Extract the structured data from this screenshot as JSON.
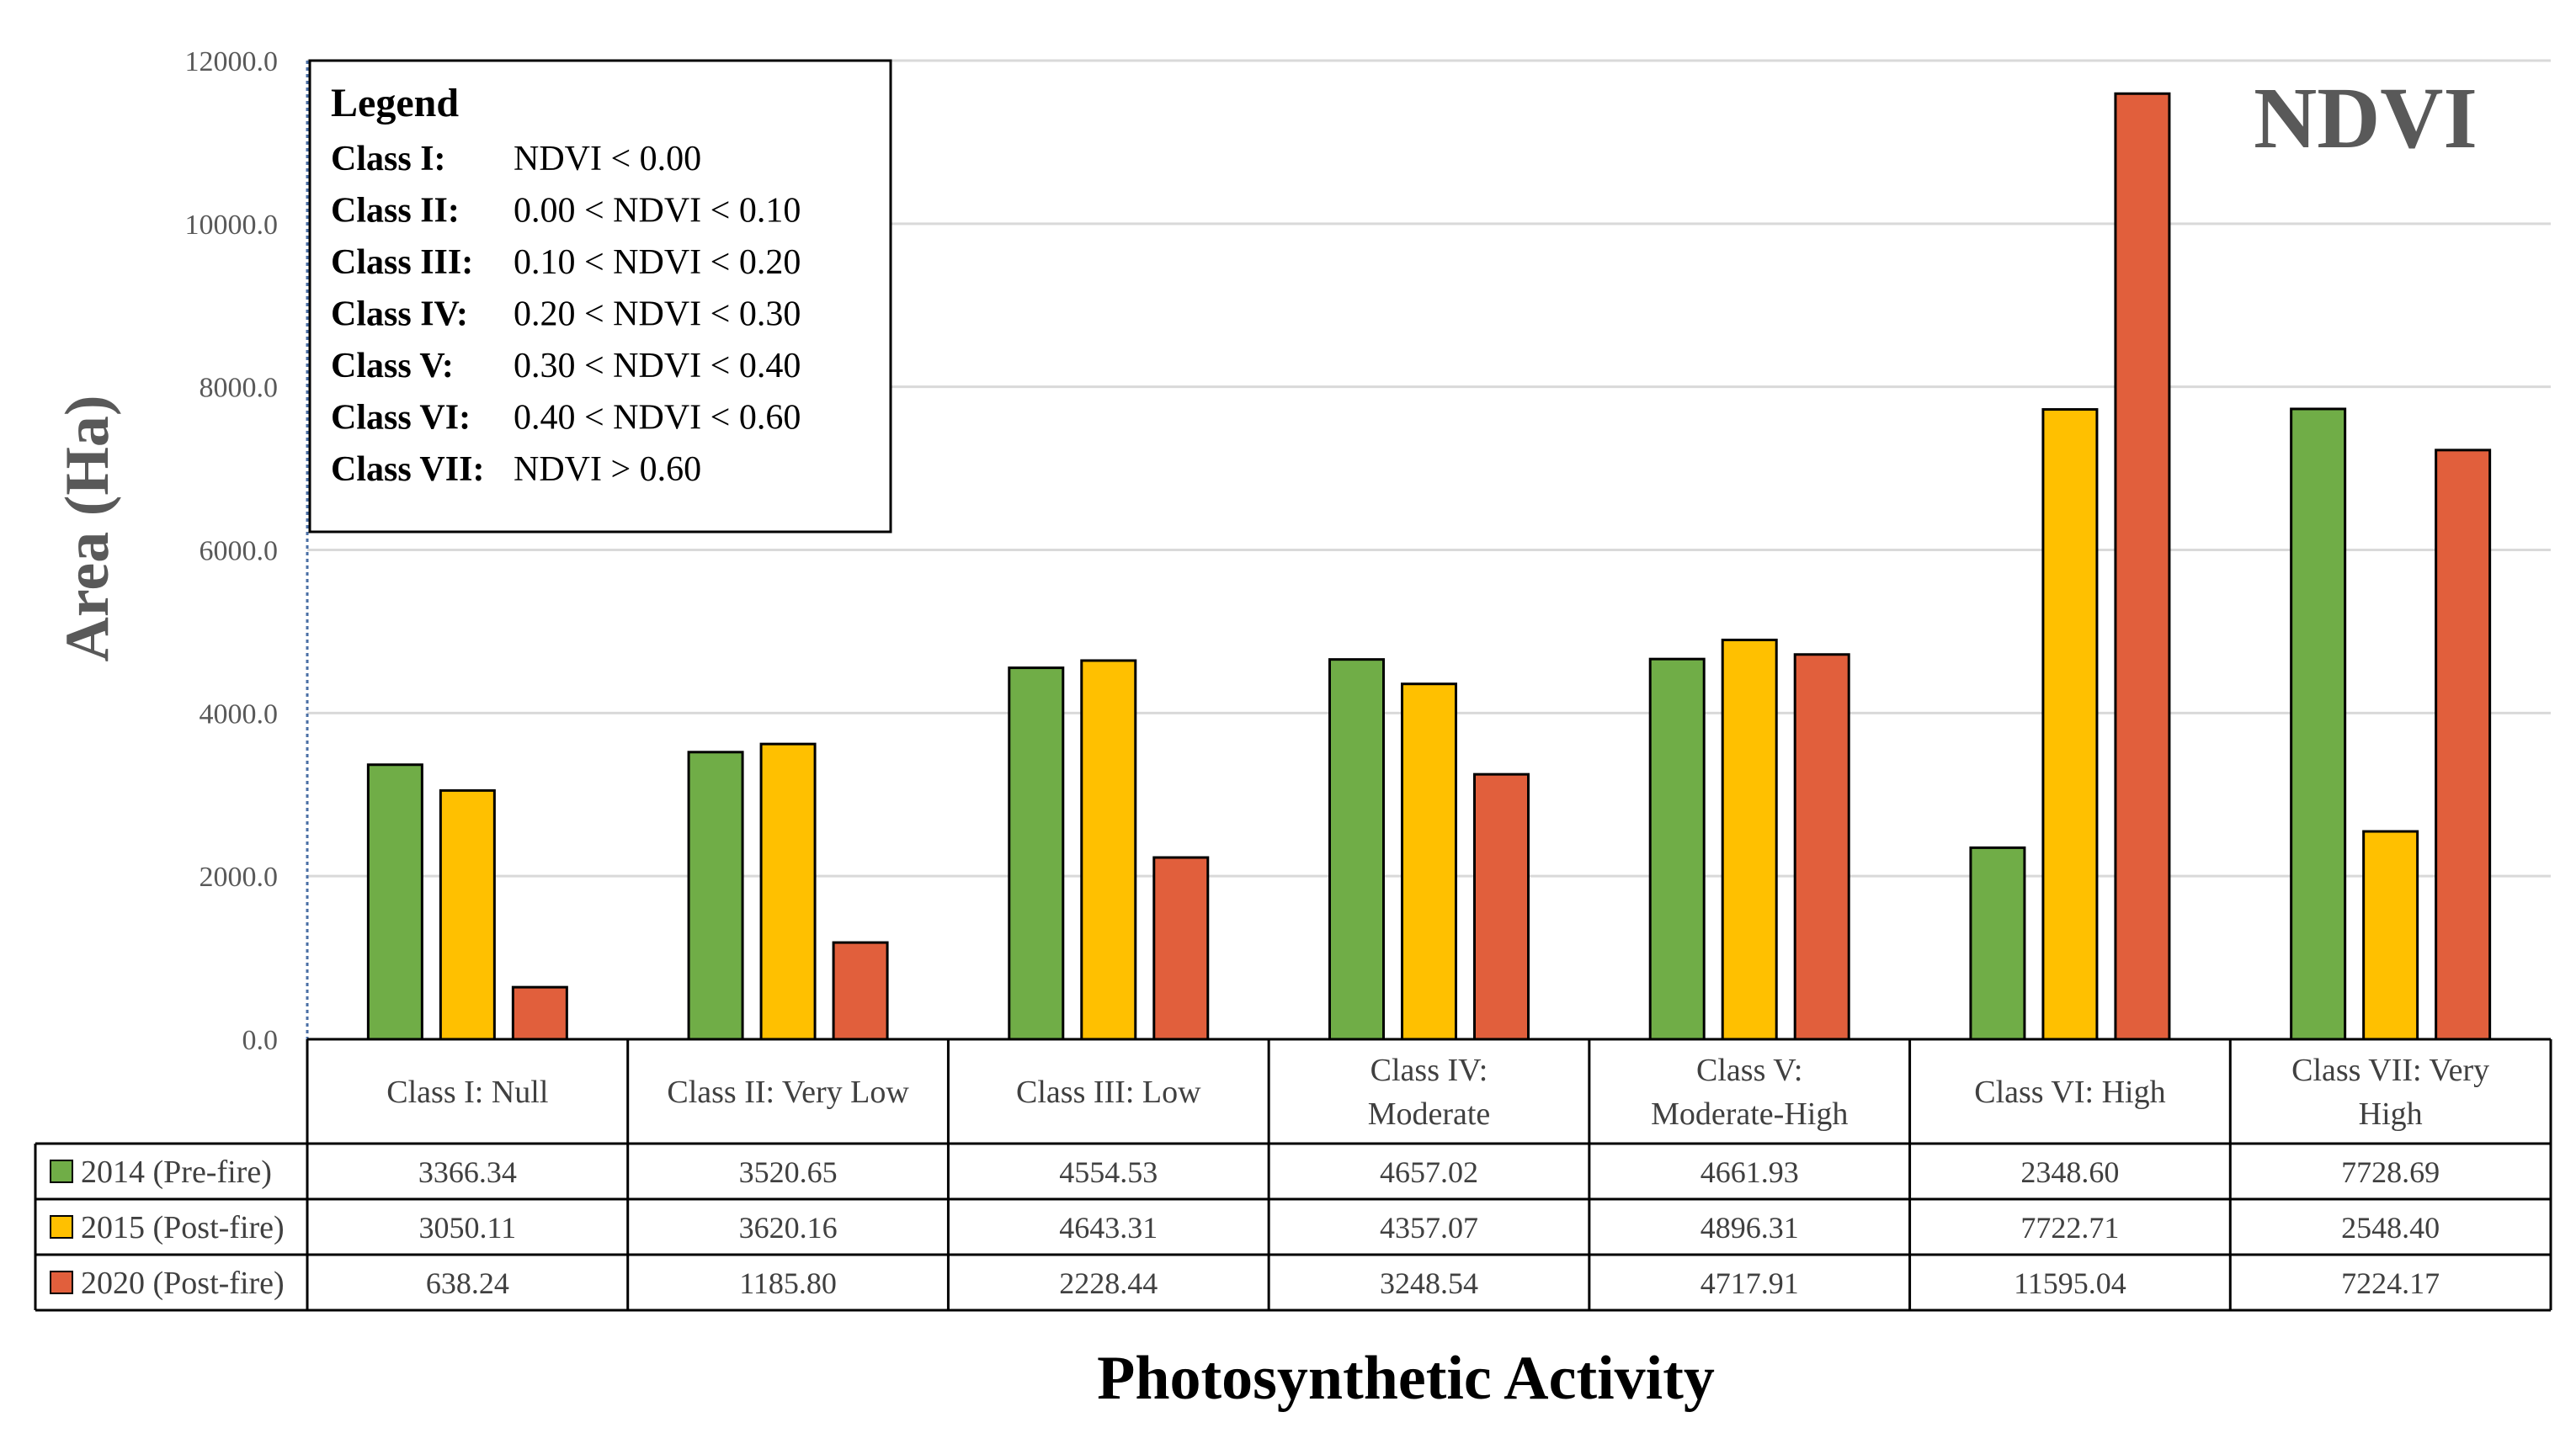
{
  "chart_data": {
    "type": "bar",
    "title": "NDVI",
    "xlabel": "Photosynthetic Activity",
    "ylabel": "Area (Ha)",
    "ylim": [
      0,
      12000
    ],
    "yticks": [
      "0.0",
      "2000.0",
      "4000.0",
      "6000.0",
      "8000.0",
      "10000.0",
      "12000.0"
    ],
    "categories": [
      [
        "Class I: Null"
      ],
      [
        "Class II: Very Low"
      ],
      [
        "Class III: Low"
      ],
      [
        "Class IV:",
        "Moderate"
      ],
      [
        "Class V:",
        "Moderate-High"
      ],
      [
        "Class VI: High"
      ],
      [
        "Class VII: Very",
        "High"
      ]
    ],
    "series": [
      {
        "name": "2014 (Pre-fire)",
        "color": "#70AD47",
        "values": [
          3366.34,
          3520.65,
          4554.53,
          4657.02,
          4661.93,
          2348.6,
          7728.69
        ],
        "labels": [
          "3366.34",
          "3520.65",
          "4554.53",
          "4657.02",
          "4661.93",
          "2348.60",
          "7728.69"
        ]
      },
      {
        "name": "2015 (Post-fire)",
        "color": "#FFC000",
        "values": [
          3050.11,
          3620.16,
          4643.31,
          4357.07,
          4896.31,
          7722.71,
          2548.4
        ],
        "labels": [
          "3050.11",
          "3620.16",
          "4643.31",
          "4357.07",
          "4896.31",
          "7722.71",
          "2548.40"
        ]
      },
      {
        "name": "2020 (Post-fire)",
        "color": "#E15F3C",
        "values": [
          638.24,
          1185.8,
          2228.44,
          3248.54,
          4717.91,
          11595.04,
          7224.17
        ],
        "labels": [
          "638.24",
          "1185.80",
          "2228.44",
          "3248.54",
          "4717.91",
          "11595.04",
          "7224.17"
        ]
      }
    ],
    "legend_box": {
      "title": "Legend",
      "rows": [
        {
          "cls": "Class I:",
          "range": "NDVI < 0.00"
        },
        {
          "cls": "Class II:",
          "range": "0.00 < NDVI < 0.10"
        },
        {
          "cls": "Class III:",
          "range": "0.10 < NDVI <  0.20"
        },
        {
          "cls": "Class IV:",
          "range": "0.20 < NDVI <  0.30"
        },
        {
          "cls": "Class V:",
          "range": "0.30 < NDVI <  0.40"
        },
        {
          "cls": "Class VI:",
          "range": "0.40 < NDVI <  0.60"
        },
        {
          "cls": "Class VII:",
          "range": "NDVI > 0.60"
        }
      ]
    },
    "grid": true,
    "data_table": true
  }
}
